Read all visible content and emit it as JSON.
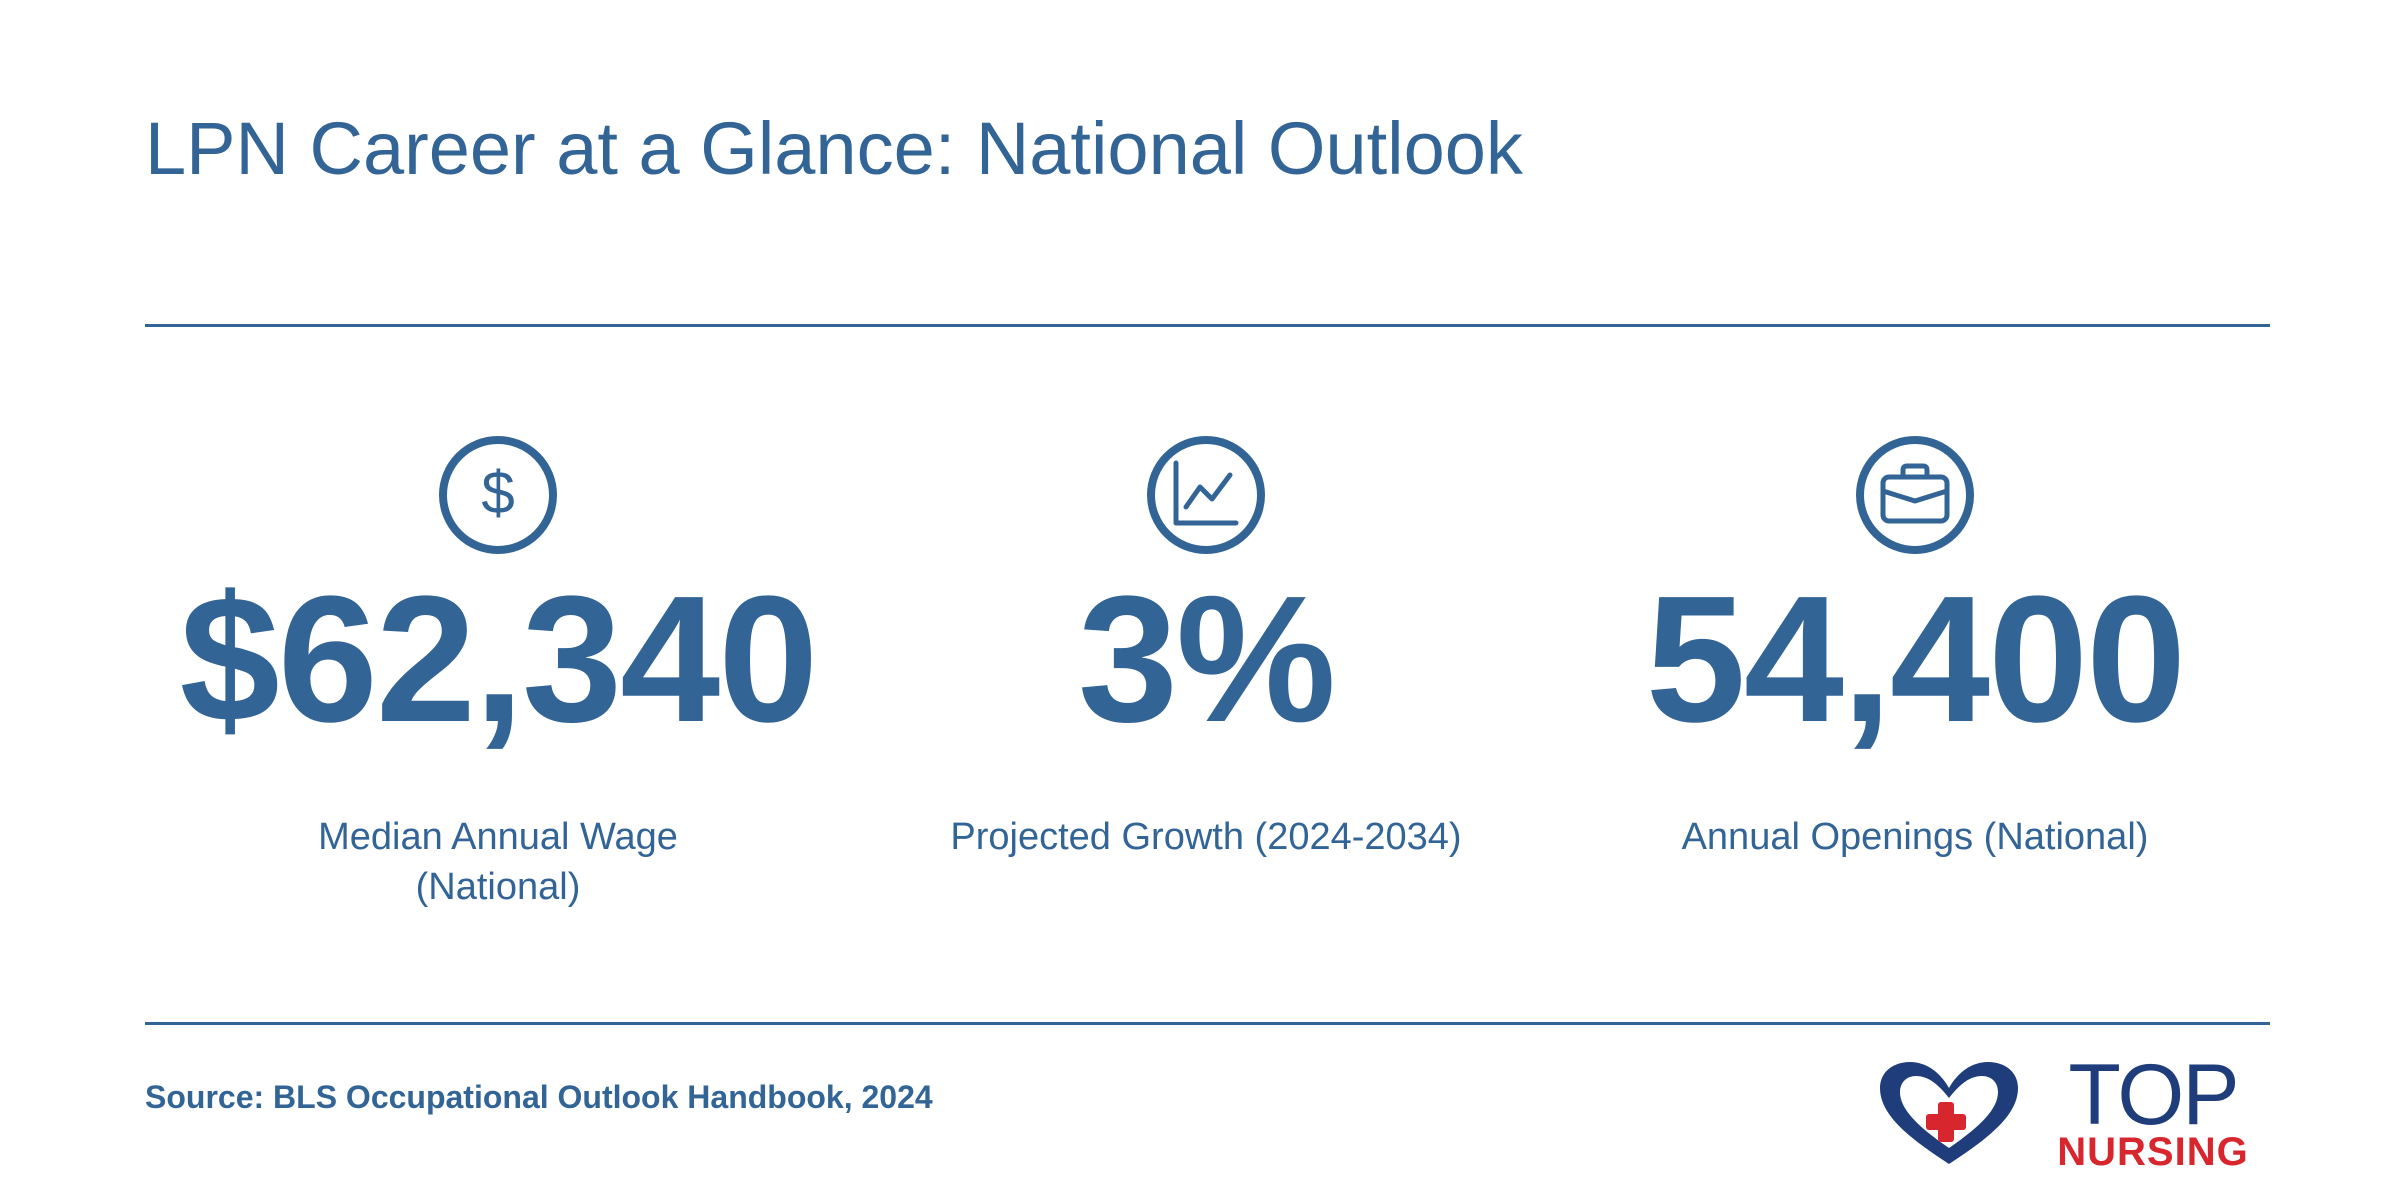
{
  "header": {
    "title": "LPN Career at a Glance: National Outlook"
  },
  "stats": [
    {
      "icon": "dollar-icon",
      "value": "$62,340",
      "label": "Median Annual Wage (National)"
    },
    {
      "icon": "line-chart-icon",
      "value": "3%",
      "label": "Projected Growth (2024-2034)"
    },
    {
      "icon": "briefcase-icon",
      "value": "54,400",
      "label": "Annual Openings (National)"
    }
  ],
  "footer": {
    "source": "Source: BLS Occupational Outlook Handbook, 2024"
  },
  "logo": {
    "word_top": "TOP",
    "word_bottom": "NURSING",
    "icon": "heart-cross-icon"
  },
  "colors": {
    "primary": "#326496",
    "logo_navy": "#1f3d7a",
    "logo_red": "#d8262e",
    "background": "#ffffff"
  }
}
